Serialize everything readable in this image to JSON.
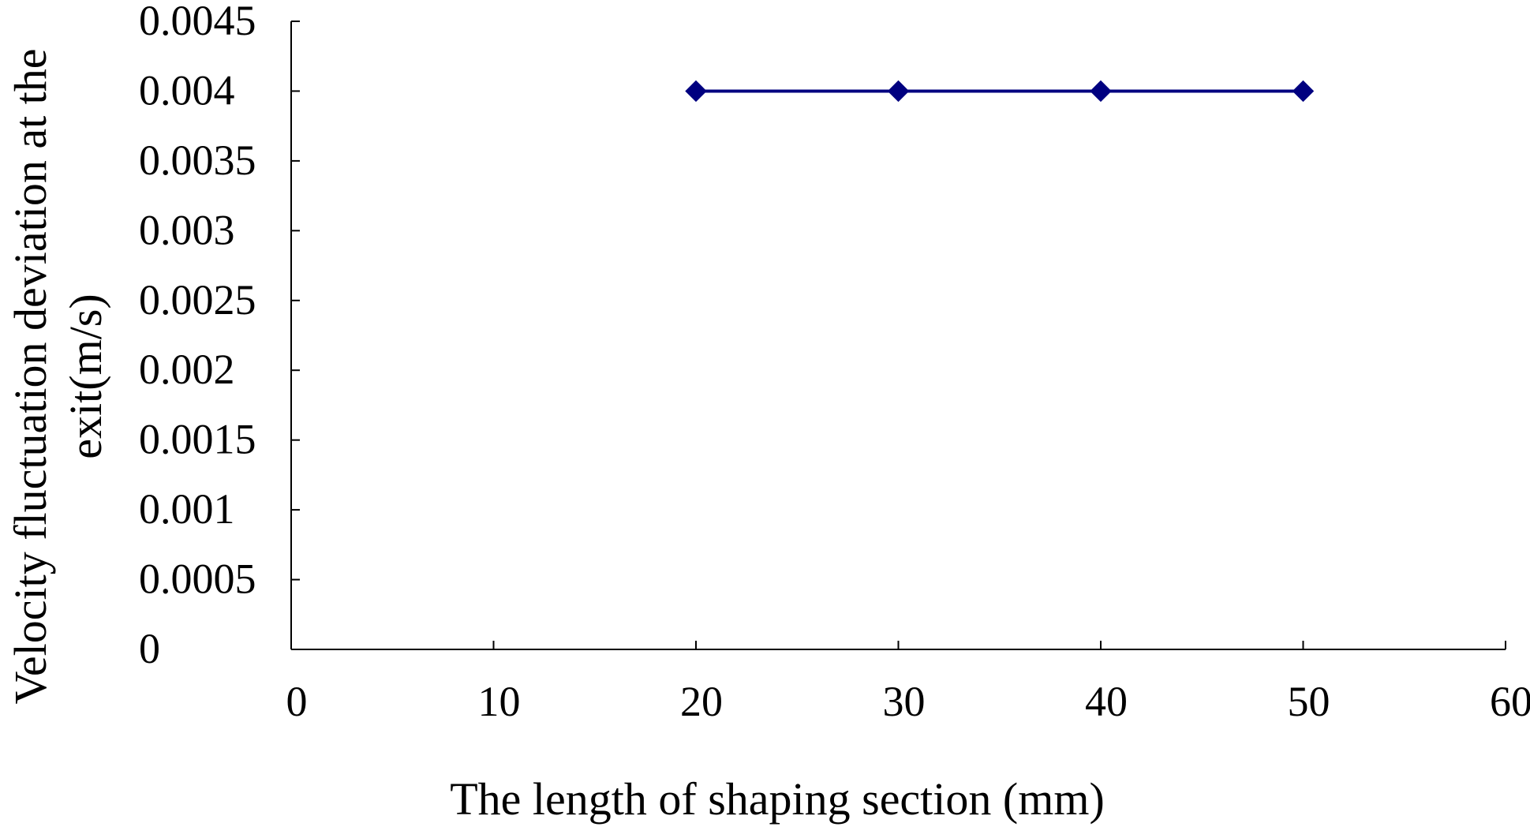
{
  "chart_data": {
    "type": "line",
    "title": "",
    "xlabel": "The length of shaping section (mm)",
    "ylabel_lines": [
      "Velocity fluctuation deviation at the",
      "exit(m/s)"
    ],
    "xlim": [
      0,
      60
    ],
    "ylim": [
      0,
      0.0045
    ],
    "x_ticks": [
      0,
      10,
      20,
      30,
      40,
      50,
      60
    ],
    "x_tick_labels": [
      "0",
      "10",
      "20",
      "30",
      "40",
      "50",
      "60"
    ],
    "y_ticks": [
      0,
      0.0005,
      0.001,
      0.0015,
      0.002,
      0.0025,
      0.003,
      0.0035,
      0.004,
      0.0045
    ],
    "y_tick_labels": [
      "0",
      "0.0005",
      "0.001",
      "0.0015",
      "0.002",
      "0.0025",
      "0.003",
      "0.0035",
      "0.004",
      "0.0045"
    ],
    "grid": false,
    "legend": "none",
    "series": [
      {
        "x": [
          20,
          30,
          40,
          50
        ],
        "values": [
          0.004,
          0.004,
          0.004,
          0.004
        ],
        "color": "#000080",
        "marker": "diamond"
      }
    ]
  }
}
